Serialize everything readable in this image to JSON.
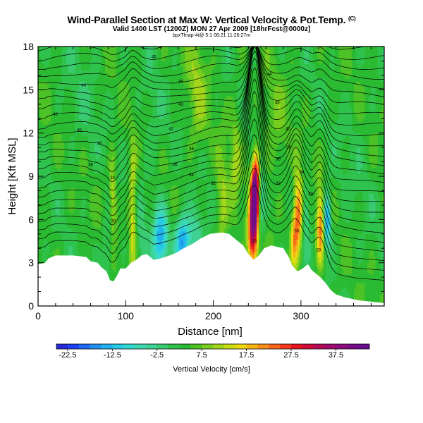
{
  "header": {
    "title": "Wind-Parallel Section at Max W: Vertical Velocity & Pot.Temp.",
    "copyright_mark": "(C)",
    "subtitle": "Valid 1400 LST (1200Z) MON 27 Apr 2009 [18hrFcst@0000z]",
    "subsubtitle": "bpxThrap-4i@ 5:1 08:21 11:26:27m"
  },
  "chart_data": {
    "type": "heatmap",
    "title": "Wind-Parallel Section at Max W: Vertical Velocity & Pot.Temp.",
    "xlabel": "Distance [nm]",
    "ylabel": "Height [Kft MSL]",
    "xlim": [
      0,
      395
    ],
    "ylim": [
      0,
      18
    ],
    "xticks": [
      "0",
      "100",
      "200",
      "300"
    ],
    "yticks": [
      "0",
      "3",
      "6",
      "9",
      "12",
      "15",
      "18"
    ],
    "colorbar": {
      "label": "Vertical Velocity [cm/s]",
      "ticks": [
        "-22.5",
        "-12.5",
        "-2.5",
        "7.5",
        "17.5",
        "27.5",
        "37.5"
      ],
      "min": -25,
      "max": 45,
      "step": 2.5
    },
    "terrain": [
      [
        0,
        2.9
      ],
      [
        8,
        3.0
      ],
      [
        12,
        3.3
      ],
      [
        20,
        3.5
      ],
      [
        40,
        3.5
      ],
      [
        55,
        3.4
      ],
      [
        60,
        3.1
      ],
      [
        68,
        3.0
      ],
      [
        72,
        2.7
      ],
      [
        78,
        2.4
      ],
      [
        82,
        1.8
      ],
      [
        86,
        1.7
      ],
      [
        90,
        2.1
      ],
      [
        94,
        2.6
      ],
      [
        100,
        2.6
      ],
      [
        106,
        3.0
      ],
      [
        112,
        3.2
      ],
      [
        118,
        3.5
      ],
      [
        124,
        3.6
      ],
      [
        132,
        3.2
      ],
      [
        140,
        3.3
      ],
      [
        150,
        3.5
      ],
      [
        158,
        3.7
      ],
      [
        166,
        4.0
      ],
      [
        176,
        4.3
      ],
      [
        186,
        4.7
      ],
      [
        196,
        5.0
      ],
      [
        210,
        5.1
      ],
      [
        218,
        5.0
      ],
      [
        226,
        4.6
      ],
      [
        234,
        4.2
      ],
      [
        240,
        3.6
      ],
      [
        246,
        3.2
      ],
      [
        252,
        3.5
      ],
      [
        258,
        4.0
      ],
      [
        266,
        4.2
      ],
      [
        280,
        4.0
      ],
      [
        286,
        3.4
      ],
      [
        290,
        2.8
      ],
      [
        296,
        2.4
      ],
      [
        302,
        2.6
      ],
      [
        308,
        2.9
      ],
      [
        312,
        2.5
      ],
      [
        316,
        2.3
      ],
      [
        322,
        2.0
      ],
      [
        328,
        1.6
      ],
      [
        334,
        1.1
      ],
      [
        340,
        0.8
      ],
      [
        350,
        0.6
      ],
      [
        365,
        0.4
      ],
      [
        380,
        0.3
      ],
      [
        395,
        0.2
      ]
    ],
    "vertical_velocity_features": [
      {
        "x": 247,
        "z": 7.5,
        "peak": 42,
        "sx": 3,
        "sz": 1.3
      },
      {
        "x": 245,
        "z": 5.0,
        "peak": 30,
        "sx": 4,
        "sz": 1.6
      },
      {
        "x": 249,
        "z": 9.5,
        "peak": 18,
        "sx": 3,
        "sz": 1.2
      },
      {
        "x": 297,
        "z": 6.5,
        "peak": 22,
        "sx": 3.5,
        "sz": 1.8
      },
      {
        "x": 292,
        "z": 4.5,
        "peak": 14,
        "sx": 3,
        "sz": 1.3
      },
      {
        "x": 322,
        "z": 5.5,
        "peak": 20,
        "sx": 3,
        "sz": 1.8
      },
      {
        "x": 255,
        "z": 7.5,
        "peak": -8,
        "sx": 3,
        "sz": 2
      },
      {
        "x": 305,
        "z": 6.5,
        "peak": -8,
        "sx": 3,
        "sz": 1.5
      },
      {
        "x": 330,
        "z": 6.0,
        "peak": -20,
        "sx": 3,
        "sz": 1.3
      },
      {
        "x": 140,
        "z": 4.8,
        "peak": -18,
        "sx": 6,
        "sz": 1.5
      },
      {
        "x": 165,
        "z": 4.5,
        "peak": -20,
        "sx": 6,
        "sz": 1.2
      },
      {
        "x": 180,
        "z": 5.0,
        "peak": -8,
        "sx": 6,
        "sz": 1.3
      },
      {
        "x": 118,
        "z": 5.0,
        "peak": -4,
        "sx": 4,
        "sz": 2
      },
      {
        "x": 80,
        "z": 4.5,
        "peak": -6,
        "sx": 4,
        "sz": 2
      },
      {
        "x": 108,
        "z": 6.5,
        "peak": 12,
        "sx": 3,
        "sz": 3
      },
      {
        "x": 85,
        "z": 7.5,
        "peak": 10,
        "sx": 3,
        "sz": 2
      },
      {
        "x": 210,
        "z": 7.0,
        "peak": 8,
        "sx": 5,
        "sz": 2.5
      },
      {
        "x": 225,
        "z": 10.0,
        "peak": 6,
        "sx": 4,
        "sz": 3
      },
      {
        "x": 182,
        "z": 15.0,
        "peak": 6,
        "sx": 8,
        "sz": 3
      },
      {
        "x": 50,
        "z": 14.0,
        "peak": -2,
        "sx": 15,
        "sz": 3
      },
      {
        "x": 130,
        "z": 12.0,
        "peak": -3,
        "sx": 8,
        "sz": 3
      },
      {
        "x": 270,
        "z": 12.0,
        "peak": 4,
        "sx": 10,
        "sz": 3
      },
      {
        "x": 360,
        "z": 9.0,
        "peak": -1,
        "sx": 20,
        "sz": 4
      }
    ],
    "isentrope_labels": [
      {
        "text": "45",
        "x": 132,
        "z": 17.3
      },
      {
        "text": "44",
        "x": 264,
        "z": 16.1
      },
      {
        "text": "44",
        "x": 52,
        "z": 15.3
      },
      {
        "text": "44",
        "x": 163,
        "z": 15.6
      },
      {
        "text": "43",
        "x": 163,
        "z": 14.0
      },
      {
        "text": "43",
        "x": 273,
        "z": 14.1
      },
      {
        "text": "42",
        "x": 20,
        "z": 13.3
      },
      {
        "text": "42",
        "x": 152,
        "z": 12.3
      },
      {
        "text": "42",
        "x": 285,
        "z": 12.3
      },
      {
        "text": "40",
        "x": 47,
        "z": 12.2
      },
      {
        "text": "38",
        "x": 70,
        "z": 11.3
      },
      {
        "text": "38",
        "x": 175,
        "z": 10.9
      },
      {
        "text": "38",
        "x": 286,
        "z": 11.0
      },
      {
        "text": "36",
        "x": 156,
        "z": 9.8
      },
      {
        "text": "36",
        "x": 274,
        "z": 10.2
      },
      {
        "text": "36",
        "x": 60,
        "z": 9.8
      },
      {
        "text": "34",
        "x": 175,
        "z": 9.1
      },
      {
        "text": "34",
        "x": 301,
        "z": 9.3
      },
      {
        "text": "34",
        "x": 85,
        "z": 8.9
      },
      {
        "text": "32",
        "x": 200,
        "z": 8.5
      },
      {
        "text": "32",
        "x": 274,
        "z": 8.5
      },
      {
        "text": "30",
        "x": 311,
        "z": 7.8
      },
      {
        "text": "30",
        "x": 86,
        "z": 5.9
      },
      {
        "text": "30",
        "x": 295,
        "z": 5.2
      },
      {
        "text": "28",
        "x": 247,
        "z": 4.5
      },
      {
        "text": "28",
        "x": 320,
        "z": 3.9
      }
    ]
  },
  "colors": {
    "terrain": "#ffffff",
    "contour": "#000000",
    "colormap": [
      "#2a2ad8",
      "#1f3ff0",
      "#1f68f2",
      "#208ff0",
      "#20b1ec",
      "#26c9e6",
      "#32d8d2",
      "#3ed8b0",
      "#3ed296",
      "#3acb72",
      "#2fc24c",
      "#2bbb33",
      "#4cc226",
      "#79cd1e",
      "#a3d61a",
      "#cadc14",
      "#ecd815",
      "#f7b518",
      "#f98f1a",
      "#f7651b",
      "#f3381d",
      "#e51621",
      "#cc0c3a",
      "#b50a55",
      "#a10a6a",
      "#8c0c7a",
      "#7a0c86",
      "#6a0d8e"
    ]
  }
}
